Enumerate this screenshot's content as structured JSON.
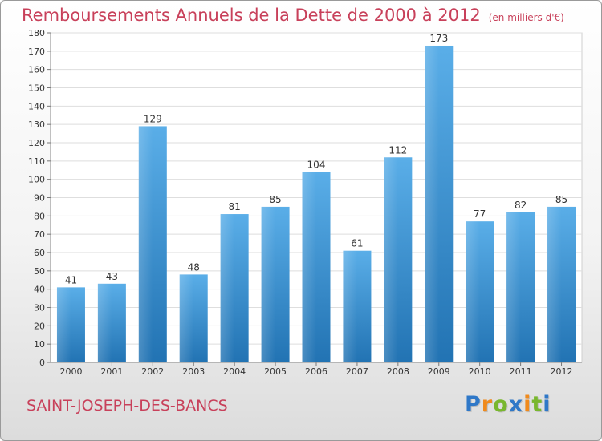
{
  "title": "Remboursements Annuels de la Dette de 2000 à 2012",
  "subtitle": "(en milliers d'€)",
  "commune": "SAINT-JOSEPH-DES-BANCS",
  "logo": {
    "text": "Proxiti",
    "letters": [
      {
        "char": "P",
        "color": "#2f78c8"
      },
      {
        "char": "r",
        "color": "#f08a1c"
      },
      {
        "char": "o",
        "color": "#79b72e"
      },
      {
        "char": "x",
        "color": "#2f78c8"
      },
      {
        "char": "i",
        "color": "#f08a1c"
      },
      {
        "char": "t",
        "color": "#79b72e"
      },
      {
        "char": "i",
        "color": "#2f78c8"
      }
    ]
  },
  "colors": {
    "bar_top": "#5aaee8",
    "bar_bottom": "#2273b3",
    "accent": "#c8405a"
  },
  "chart_data": {
    "type": "bar",
    "categories": [
      "2000",
      "2001",
      "2002",
      "2003",
      "2004",
      "2005",
      "2006",
      "2007",
      "2008",
      "2009",
      "2010",
      "2011",
      "2012"
    ],
    "values": [
      41,
      43,
      129,
      48,
      81,
      85,
      104,
      61,
      112,
      173,
      77,
      82,
      85
    ],
    "value_labels": [
      "41",
      "43",
      "129",
      "48",
      "81",
      "85",
      "104",
      "61",
      "112",
      "173",
      "77",
      "82",
      "85"
    ],
    "ylim": [
      0,
      180
    ],
    "yticks": [
      "0",
      "10",
      "20",
      "30",
      "40",
      "50",
      "60",
      "70",
      "80",
      "90",
      "100",
      "110",
      "120",
      "130",
      "140",
      "150",
      "160",
      "170",
      "180"
    ],
    "grid": true
  }
}
